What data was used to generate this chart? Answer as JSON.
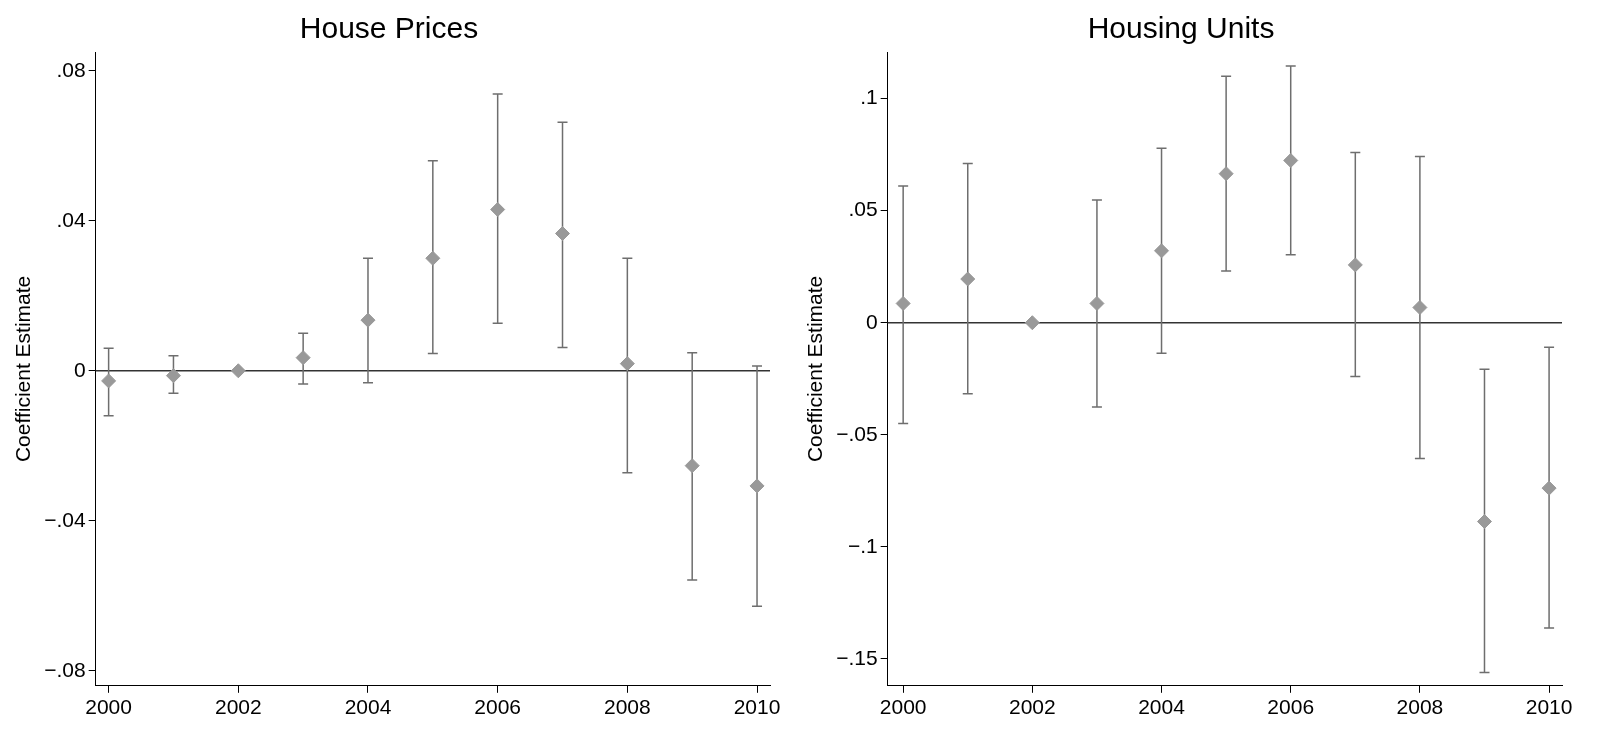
{
  "chart_data": [
    {
      "type": "scatter",
      "title": "House Prices",
      "ylabel": "Coefficient Estimate",
      "x": [
        2000,
        2001,
        2002,
        2003,
        2004,
        2005,
        2006,
        2007,
        2008,
        2009,
        2010
      ],
      "series": [
        {
          "color": "#999999",
          "values": [
            -0.0027,
            -0.0013,
            0,
            0.0035,
            0.0135,
            0.03,
            0.043,
            0.0366,
            0.0019,
            -0.0253,
            -0.0307
          ],
          "errors": [
            [
              -0.012,
              0.006
            ],
            [
              -0.006,
              0.004
            ],
            null,
            [
              -0.0035,
              0.01
            ],
            [
              -0.0032,
              0.03
            ],
            [
              0.0046,
              0.056
            ],
            [
              0.0127,
              0.0738
            ],
            [
              0.0062,
              0.0663
            ],
            [
              -0.0272,
              0.03
            ],
            [
              -0.0558,
              0.0048
            ],
            [
              -0.0628,
              0.0013
            ]
          ]
        }
      ],
      "xlim": [
        1999.8,
        2010.2
      ],
      "xticks": [
        2000,
        2002,
        2004,
        2006,
        2008,
        2010
      ],
      "ylim": [
        -0.084,
        0.085
      ],
      "yticks": [
        {
          "value": -0.08,
          "label": "−.08"
        },
        {
          "value": -0.04,
          "label": "−.04"
        },
        {
          "value": 0,
          "label": "0"
        },
        {
          "value": 0.04,
          "label": ".04"
        },
        {
          "value": 0.08,
          "label": ".08"
        }
      ],
      "ref_lines": [
        {
          "axis": "y",
          "value": 0,
          "color": "#333333"
        }
      ],
      "marker": "diamond",
      "grid": false,
      "legend": false
    },
    {
      "type": "scatter",
      "title": "Housing Units",
      "ylabel": "Coefficient Estimate",
      "x": [
        2000,
        2001,
        2002,
        2003,
        2004,
        2005,
        2006,
        2007,
        2008,
        2009,
        2010
      ],
      "series": [
        {
          "color": "#999999",
          "values": [
            0.0086,
            0.0195,
            0,
            0.0086,
            0.0321,
            0.0665,
            0.0724,
            0.0258,
            0.0068,
            -0.0887,
            -0.0738
          ],
          "errors": [
            [
              -0.045,
              0.061
            ],
            [
              -0.0317,
              0.071
            ],
            null,
            [
              -0.0376,
              0.0548
            ],
            [
              -0.0136,
              0.0778
            ],
            [
              0.0231,
              0.11
            ],
            [
              0.0303,
              0.1145
            ],
            [
              -0.024,
              0.076
            ],
            [
              -0.0606,
              0.0742
            ],
            [
              -0.1561,
              -0.0208
            ],
            [
              -0.1362,
              -0.0109
            ]
          ]
        }
      ],
      "xlim": [
        1999.76,
        2010.2
      ],
      "xticks": [
        2000,
        2002,
        2004,
        2006,
        2008,
        2010
      ],
      "ylim": [
        -0.162,
        0.1208
      ],
      "yticks": [
        {
          "value": -0.15,
          "label": "−.15"
        },
        {
          "value": -0.1,
          "label": "−.1"
        },
        {
          "value": -0.05,
          "label": "−.05"
        },
        {
          "value": 0,
          "label": "0"
        },
        {
          "value": 0.05,
          "label": ".05"
        },
        {
          "value": 0.1,
          "label": ".1"
        }
      ],
      "ref_lines": [
        {
          "axis": "y",
          "value": 0,
          "color": "#333333"
        }
      ],
      "marker": "diamond",
      "grid": false,
      "legend": false
    }
  ]
}
